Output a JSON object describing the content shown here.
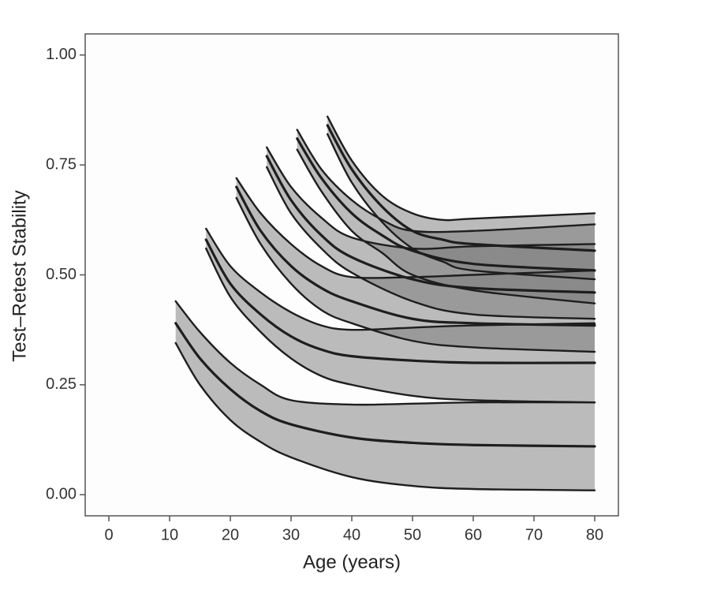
{
  "chart_data": {
    "type": "ribbon",
    "xlabel": "Age (years)",
    "ylabel": "Test–Retest Stability",
    "xlim": [
      -3.9,
      83.9
    ],
    "ylim": [
      -0.048,
      1.048
    ],
    "xticks": [
      0,
      10,
      20,
      30,
      40,
      50,
      60,
      70,
      80
    ],
    "yticks": [
      {
        "value": 0,
        "label": "0.00"
      },
      {
        "value": 0.25,
        "label": "0.25"
      },
      {
        "value": 0.5,
        "label": "0.50"
      },
      {
        "value": 0.75,
        "label": "0.75"
      },
      {
        "value": 1,
        "label": "1.00"
      }
    ],
    "color": "#7a7a7a",
    "line_color": "#1e1e1e",
    "series": [
      {
        "x": [
          11,
          15,
          20,
          25,
          30,
          40,
          50,
          60,
          80
        ],
        "upper": [
          0.44,
          0.37,
          0.3,
          0.25,
          0.215,
          0.205,
          0.207,
          0.21,
          0.21
        ],
        "values": [
          0.39,
          0.31,
          0.24,
          0.19,
          0.16,
          0.13,
          0.118,
          0.113,
          0.11
        ],
        "lower": [
          0.345,
          0.25,
          0.17,
          0.12,
          0.085,
          0.04,
          0.02,
          0.013,
          0.01
        ]
      },
      {
        "x": [
          16,
          20,
          25,
          30,
          35,
          40,
          50,
          60,
          80
        ],
        "upper": [
          0.605,
          0.52,
          0.46,
          0.415,
          0.385,
          0.375,
          0.38,
          0.385,
          0.39
        ],
        "values": [
          0.58,
          0.48,
          0.41,
          0.36,
          0.33,
          0.315,
          0.305,
          0.3,
          0.3
        ],
        "lower": [
          0.56,
          0.45,
          0.37,
          0.31,
          0.27,
          0.25,
          0.225,
          0.215,
          0.21
        ]
      },
      {
        "x": [
          21,
          25,
          30,
          35,
          40,
          50,
          60,
          80
        ],
        "upper": [
          0.72,
          0.64,
          0.57,
          0.52,
          0.495,
          0.495,
          0.5,
          0.51
        ],
        "values": [
          0.7,
          0.6,
          0.52,
          0.47,
          0.44,
          0.4,
          0.39,
          0.385
        ],
        "lower": [
          0.675,
          0.57,
          0.48,
          0.42,
          0.39,
          0.35,
          0.335,
          0.325
        ]
      },
      {
        "x": [
          26,
          30,
          35,
          40,
          50,
          60,
          80
        ],
        "upper": [
          0.79,
          0.7,
          0.63,
          0.585,
          0.56,
          0.565,
          0.57
        ],
        "values": [
          0.77,
          0.67,
          0.59,
          0.54,
          0.49,
          0.47,
          0.46
        ],
        "lower": [
          0.745,
          0.64,
          0.56,
          0.505,
          0.44,
          0.41,
          0.4
        ]
      },
      {
        "x": [
          31,
          35,
          40,
          45,
          50,
          60,
          80
        ],
        "upper": [
          0.83,
          0.74,
          0.67,
          0.625,
          0.6,
          0.6,
          0.615
        ],
        "values": [
          0.81,
          0.72,
          0.64,
          0.59,
          0.555,
          0.525,
          0.51
        ],
        "lower": [
          0.785,
          0.69,
          0.6,
          0.55,
          0.5,
          0.465,
          0.435
        ]
      },
      {
        "x": [
          36,
          40,
          45,
          50,
          55,
          60,
          80
        ],
        "upper": [
          0.86,
          0.76,
          0.68,
          0.64,
          0.625,
          0.628,
          0.64
        ],
        "values": [
          0.84,
          0.74,
          0.655,
          0.6,
          0.58,
          0.57,
          0.555
        ],
        "lower": [
          0.82,
          0.71,
          0.62,
          0.56,
          0.53,
          0.51,
          0.49
        ]
      }
    ]
  }
}
